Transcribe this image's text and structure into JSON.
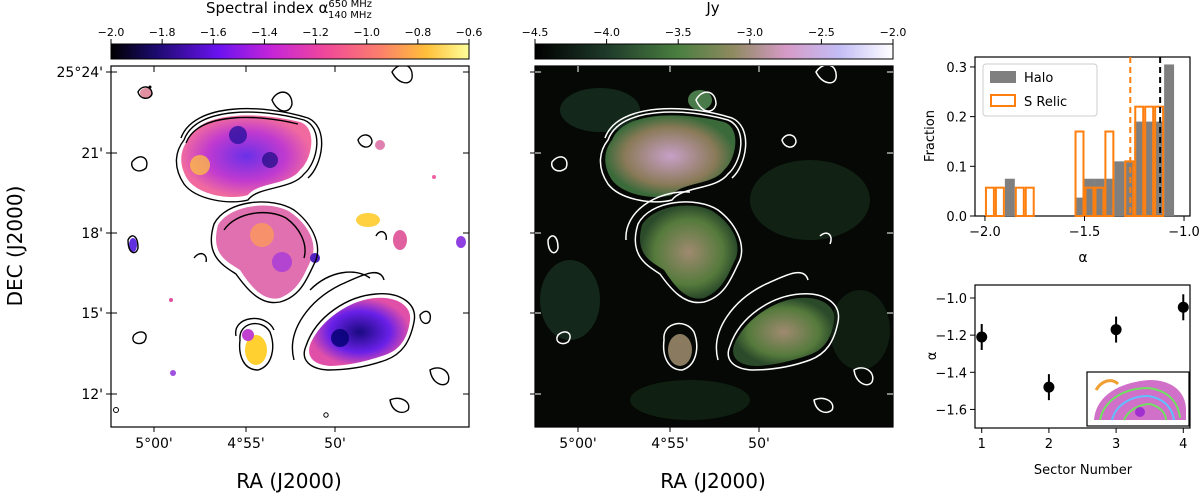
{
  "panels": {
    "left": {
      "colorbar_title": "Spectral index α",
      "colorbar_sup": "650 MHz",
      "colorbar_sub": "140 MHz",
      "colorbar_ticks": [
        "−2.0",
        "−1.8",
        "−1.6",
        "−1.4",
        "−1.2",
        "−1.0",
        "−0.8",
        "−0.6"
      ],
      "ylabel": "DEC (J2000)",
      "xlabel": "RA (J2000)",
      "yticks": [
        "25°24'",
        "21'",
        "18'",
        "15'",
        "12'"
      ],
      "xticks": [
        "5°00'",
        "4°55'",
        "50'"
      ]
    },
    "middle": {
      "colorbar_title": "Jy",
      "colorbar_ticks": [
        "−4.5",
        "−4.0",
        "−3.5",
        "−3.0",
        "−2.5",
        "−2.0"
      ],
      "xlabel": "RA (J2000)",
      "xticks": [
        "5°00'",
        "4°55'",
        "50'"
      ]
    }
  },
  "chart_data": [
    {
      "type": "bar",
      "subtype": "histogram",
      "xlabel": "α",
      "ylabel": "Fraction",
      "xlim": [
        -2.05,
        -0.97
      ],
      "ylim": [
        0,
        0.32
      ],
      "xticks": [
        "−2.0",
        "−1.5",
        "−1.0"
      ],
      "yticks": [
        "0.0",
        "0.1",
        "0.2",
        "0.3"
      ],
      "legend_position": "top-left",
      "series": [
        {
          "name": "Halo",
          "color": "#7f7f7f",
          "style": "filled",
          "bins": [
            {
              "x0": -1.9,
              "x1": -1.85,
              "value": 0.075
            },
            {
              "x0": -1.55,
              "x1": -1.5,
              "value": 0.037
            },
            {
              "x0": -1.5,
              "x1": -1.45,
              "value": 0.075
            },
            {
              "x0": -1.45,
              "x1": -1.4,
              "value": 0.075
            },
            {
              "x0": -1.4,
              "x1": -1.35,
              "value": 0.075
            },
            {
              "x0": -1.35,
              "x1": -1.3,
              "value": 0.11
            },
            {
              "x0": -1.3,
              "x1": -1.25,
              "value": 0.11
            },
            {
              "x0": -1.25,
              "x1": -1.2,
              "value": 0.19
            },
            {
              "x0": -1.2,
              "x1": -1.15,
              "value": 0.19
            },
            {
              "x0": -1.15,
              "x1": -1.1,
              "value": 0.19
            },
            {
              "x0": -1.1,
              "x1": -1.05,
              "value": 0.305
            }
          ]
        },
        {
          "name": "S Relic",
          "color": "#ff7f0e",
          "style": "outline",
          "bins": [
            {
              "x0": -2.0,
              "x1": -1.95,
              "value": 0.057
            },
            {
              "x0": -1.95,
              "x1": -1.9,
              "value": 0.057
            },
            {
              "x0": -1.85,
              "x1": -1.8,
              "value": 0.057
            },
            {
              "x0": -1.8,
              "x1": -1.75,
              "value": 0.057
            },
            {
              "x0": -1.55,
              "x1": -1.5,
              "value": 0.17
            },
            {
              "x0": -1.5,
              "x1": -1.45,
              "value": 0.057
            },
            {
              "x0": -1.45,
              "x1": -1.4,
              "value": 0.057
            },
            {
              "x0": -1.4,
              "x1": -1.35,
              "value": 0.17
            },
            {
              "x0": -1.3,
              "x1": -1.25,
              "value": 0.11
            },
            {
              "x0": -1.25,
              "x1": -1.2,
              "value": 0.22
            },
            {
              "x0": -1.2,
              "x1": -1.15,
              "value": 0.22
            },
            {
              "x0": -1.15,
              "x1": -1.1,
              "value": 0.22
            }
          ]
        }
      ],
      "vlines": [
        {
          "series": "S Relic",
          "x": -1.27,
          "color": "#ff7f0e",
          "style": "dashed"
        },
        {
          "series": "Halo",
          "x": -1.12,
          "color": "#000000",
          "style": "dashed"
        }
      ]
    },
    {
      "type": "scatter",
      "xlabel": "Sector Number",
      "ylabel": "α",
      "xlim": [
        0.9,
        4.1
      ],
      "ylim": [
        -1.7,
        -0.93
      ],
      "xticks": [
        "1",
        "2",
        "3",
        "4"
      ],
      "yticks": [
        "−1.0",
        "−1.2",
        "−1.4",
        "−1.6"
      ],
      "points": [
        {
          "x": 1,
          "y": -1.21,
          "err": 0.07
        },
        {
          "x": 2,
          "y": -1.48,
          "err": 0.07
        },
        {
          "x": 3,
          "y": -1.17,
          "err": 0.07
        },
        {
          "x": 4,
          "y": -1.05,
          "err": 0.07
        }
      ]
    }
  ]
}
